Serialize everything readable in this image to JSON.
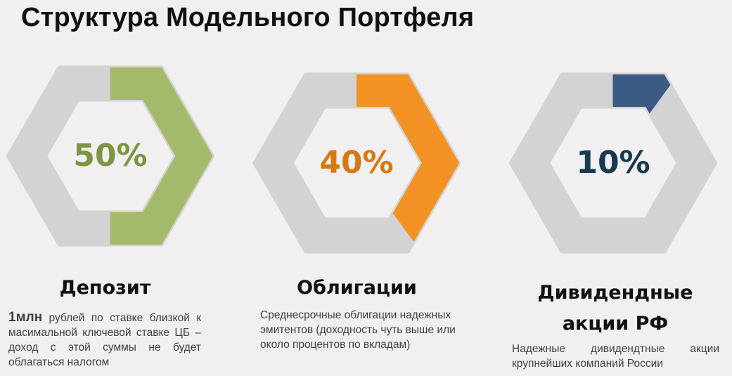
{
  "title": "Структура Модельного Портфеля",
  "colors": {
    "track": "#d3d3d3",
    "deposit_fill": "#a3ba6b",
    "deposit_text": "#7c9541",
    "bonds_fill": "#f39224",
    "bonds_text": "#d57a13",
    "stocks_fill": "#3b5b84",
    "stocks_text": "#173a4f"
  },
  "chart_data": [
    {
      "type": "pie",
      "categories": [
        "Депозит"
      ],
      "values": [
        50
      ],
      "value_label": "50%"
    },
    {
      "type": "pie",
      "categories": [
        "Облигации"
      ],
      "values": [
        40
      ],
      "value_label": "40%"
    },
    {
      "type": "pie",
      "categories": [
        "Дивидендные акции РФ"
      ],
      "values": [
        10
      ],
      "value_label": "10%"
    }
  ],
  "items": [
    {
      "label": "Депозит",
      "desc_bold": "1млн",
      "desc": " рублей по ставке близкой к масимальной ключевой ставке ЦБ – доход с этой суммы не будет облагаться налогом"
    },
    {
      "label": "Облигации",
      "desc": "Среднесрочные облигации надежных эмитентов (доходность чуть выше или около процентов по вкладам)"
    },
    {
      "label_line1": "Дивидендные",
      "label_line2": "акции РФ",
      "desc": "Надежные дивидендтные акции крупнейших компаний России"
    }
  ]
}
